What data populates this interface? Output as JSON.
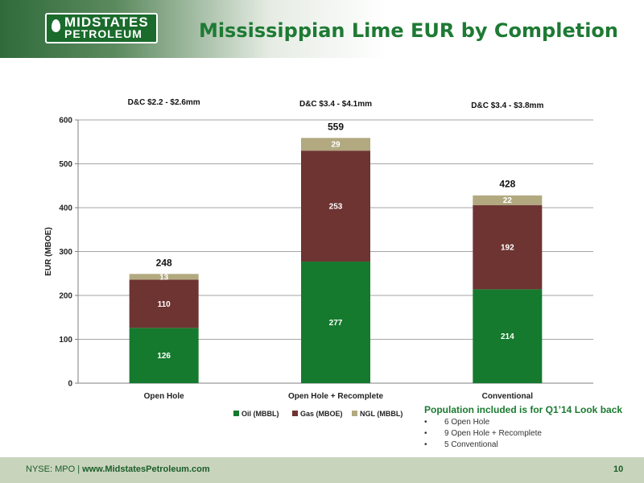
{
  "logo": {
    "line1": "MIDSTATES",
    "line2": "PETROLEUM"
  },
  "title": "Mississippian Lime EUR by Completion",
  "colors": {
    "oil": "#157a2e",
    "gas": "#6e3432",
    "ngl": "#b2a980",
    "title": "#1e7a34",
    "header_green": "#2f6b3a",
    "footer": "#c9d4bd"
  },
  "chart_data": {
    "type": "bar",
    "stacked": true,
    "categories": [
      "Open Hole",
      "Open Hole + Recomplete",
      "Conventional"
    ],
    "series": [
      {
        "name": "Oil (MBBL)",
        "values": [
          126,
          277,
          214
        ]
      },
      {
        "name": "Gas (MBOE)",
        "values": [
          110,
          253,
          192
        ]
      },
      {
        "name": "NGL (MBBL)",
        "values": [
          13,
          29,
          22
        ]
      }
    ],
    "totals": [
      "248",
      "559",
      "428"
    ],
    "cost_labels": [
      "D&C $2.2 - $2.6mm",
      "D&C $3.4 - $4.1mm",
      "D&C $3.4 - $3.8mm"
    ],
    "ylabel": "EUR (MBOE)",
    "ylim": [
      0,
      600
    ],
    "yticks": [
      0,
      100,
      200,
      300,
      400,
      500,
      600
    ],
    "grid": true,
    "legend_position": "bottom"
  },
  "population": {
    "title": "Population included is for Q1’14 Look back",
    "bullet": "•",
    "items": [
      "6 Open Hole",
      "9 Open Hole + Recomplete",
      "5 Conventional"
    ]
  },
  "footer": {
    "ticker": "NYSE: MPO",
    "separator": "|",
    "url": "www.MidstatesPetroleum.com",
    "page": "10"
  }
}
